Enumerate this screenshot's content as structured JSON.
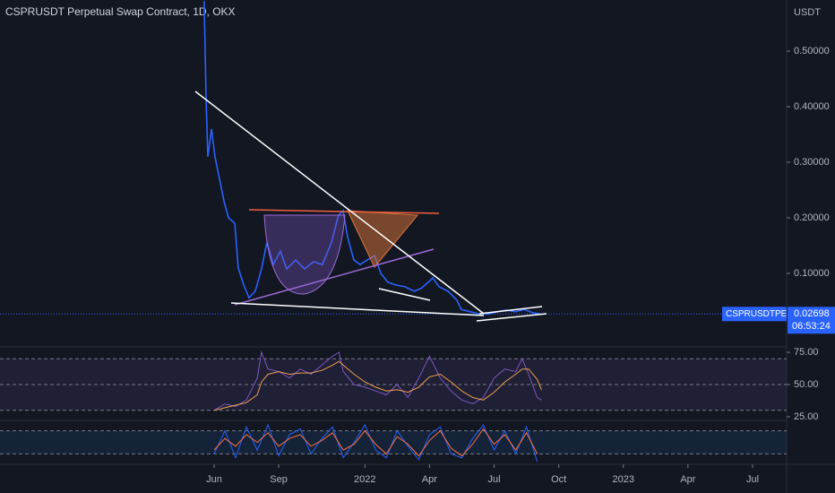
{
  "chart_data": [
    {
      "type": "line",
      "title": "CSPRUSDT Perpetual Swap Contract, 1D, OKX",
      "unit_label": "USDT",
      "symbol": "CSPRUSDTPERP",
      "last_price": 0.02698,
      "countdown": "06:53:24",
      "xlim": [
        -9.94,
        26.58
      ],
      "xticks": [
        {
          "value": 0,
          "label": "Jun"
        },
        {
          "value": 3,
          "label": "Sep"
        },
        {
          "value": 7,
          "label": "2022"
        },
        {
          "value": 10,
          "label": "Apr"
        },
        {
          "value": 13,
          "label": "Jul"
        },
        {
          "value": 16,
          "label": "Oct"
        },
        {
          "value": 19,
          "label": "2023"
        },
        {
          "value": 22,
          "label": "Apr"
        },
        {
          "value": 25,
          "label": "Jul"
        }
      ],
      "ylim": [
        -0.029,
        0.592
      ],
      "yticks": [
        {
          "value": 0.1,
          "label": "0.10000"
        },
        {
          "value": 0.2,
          "label": "0.20000"
        },
        {
          "value": 0.3,
          "label": "0.30000"
        },
        {
          "value": 0.4,
          "label": "0.40000"
        },
        {
          "value": 0.5,
          "label": "0.50000"
        }
      ],
      "x": [
        -0.46,
        -0.37,
        -0.29,
        -0.12,
        0.04,
        0.25,
        0.46,
        0.67,
        0.96,
        1.12,
        1.37,
        1.62,
        1.91,
        2.2,
        2.45,
        2.75,
        3.08,
        3.37,
        3.79,
        4.2,
        4.62,
        5.03,
        5.45,
        5.78,
        5.99,
        6.2,
        6.49,
        6.78,
        7.11,
        7.45,
        7.74,
        8.07,
        8.44,
        8.86,
        9.28,
        9.61,
        9.94,
        10.15,
        10.44,
        10.86,
        11.27,
        11.48,
        11.9,
        12.31,
        12.73,
        13.14,
        13.56,
        13.98,
        14.39,
        14.81,
        15.18
      ],
      "series": [
        {
          "name": "CSPRUSDTPERP",
          "color": "#2962ff",
          "values": [
            0.59,
            0.41,
            0.31,
            0.36,
            0.31,
            0.27,
            0.23,
            0.2,
            0.19,
            0.11,
            0.08,
            0.056,
            0.068,
            0.108,
            0.156,
            0.116,
            0.14,
            0.108,
            0.124,
            0.108,
            0.121,
            0.116,
            0.156,
            0.205,
            0.213,
            0.165,
            0.124,
            0.116,
            0.124,
            0.132,
            0.1,
            0.084,
            0.079,
            0.076,
            0.068,
            0.073,
            0.084,
            0.092,
            0.076,
            0.068,
            0.052,
            0.035,
            0.031,
            0.027,
            0.027,
            0.031,
            0.034,
            0.031,
            0.035,
            0.029,
            0.02698
          ]
        }
      ]
    },
    {
      "type": "line",
      "ylim": [
        22.9,
        78.5
      ],
      "yticks": [
        {
          "value": 25,
          "label": "25.00"
        },
        {
          "value": 50,
          "label": "50.00"
        },
        {
          "value": 75,
          "label": "75.00"
        }
      ],
      "bands": [
        30,
        50,
        70
      ],
      "x": [
        0,
        0.5,
        1,
        1.5,
        2,
        2.2,
        2.5,
        3,
        3.5,
        4,
        4.5,
        5,
        5.5,
        5.8,
        6,
        6.5,
        7,
        7.5,
        8,
        8.5,
        9,
        9.5,
        10,
        10.5,
        11,
        11.5,
        12,
        12.5,
        13,
        13.5,
        14,
        14.3,
        14.6,
        15,
        15.2
      ],
      "series": [
        {
          "color": "#7e57c2",
          "values": [
            30,
            35,
            33,
            38,
            55,
            75,
            62,
            60,
            55,
            62,
            58,
            65,
            72,
            75,
            60,
            50,
            48,
            45,
            42,
            50,
            40,
            55,
            72,
            55,
            45,
            38,
            35,
            40,
            55,
            62,
            60,
            70,
            58,
            40,
            38
          ]
        },
        {
          "color": "#f0a050",
          "values": [
            30,
            32,
            34,
            36,
            42,
            52,
            58,
            60,
            58,
            59,
            59,
            61,
            65,
            68,
            65,
            58,
            52,
            48,
            45,
            46,
            44,
            48,
            56,
            58,
            52,
            45,
            40,
            38,
            44,
            52,
            58,
            62,
            62,
            54,
            46
          ]
        }
      ]
    },
    {
      "type": "line",
      "ylim": [
        0,
        100
      ],
      "bands": [
        20,
        80
      ],
      "x": [
        0,
        0.5,
        1,
        1.5,
        2,
        2.5,
        3,
        3.5,
        4,
        4.5,
        5,
        5.5,
        6,
        6.5,
        7,
        7.5,
        8,
        8.5,
        9,
        9.5,
        10,
        10.5,
        11,
        11.5,
        12,
        12.5,
        13,
        13.5,
        14,
        14.5,
        15
      ],
      "series": [
        {
          "color": "#2962ff",
          "values": [
            20,
            80,
            10,
            90,
            30,
            95,
            15,
            70,
            85,
            20,
            60,
            90,
            10,
            50,
            95,
            30,
            10,
            80,
            40,
            5,
            70,
            90,
            20,
            10,
            60,
            95,
            30,
            80,
            20,
            90,
            0
          ]
        },
        {
          "color": "#ff7043",
          "values": [
            30,
            60,
            40,
            70,
            50,
            75,
            40,
            60,
            70,
            40,
            55,
            75,
            30,
            45,
            80,
            45,
            20,
            65,
            45,
            15,
            55,
            80,
            35,
            15,
            45,
            85,
            45,
            70,
            30,
            75,
            20
          ]
        }
      ]
    }
  ]
}
